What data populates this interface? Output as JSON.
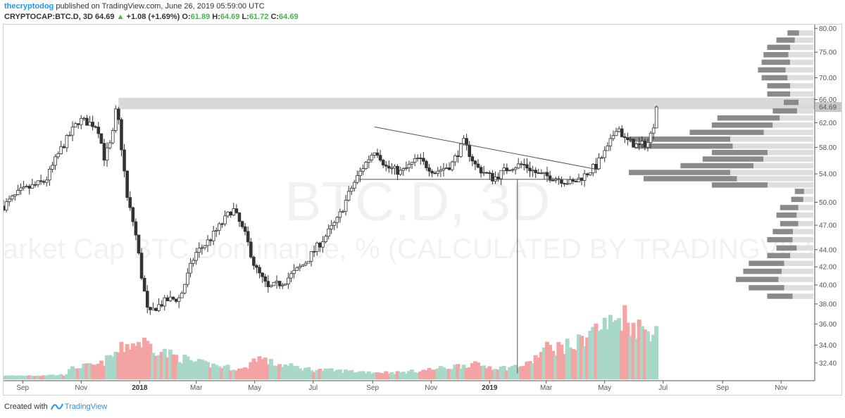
{
  "header": {
    "author": "thecryptodog",
    "published": "published on TradingView.com, June 26, 2019 05:59:00 UTC",
    "symbol": "CRYPTOCAP:BTC.D, 3D",
    "price": "64.69",
    "arrow": "▲",
    "change": "+1.08 (+1.69%)",
    "o_label": "O:",
    "o_value": "61.89",
    "h_label": "H:",
    "h_value": "64.69",
    "l_label": "L:",
    "l_value": "61.72",
    "c_label": "C:",
    "c_value": "64.69"
  },
  "watermark": {
    "big": "BTC.D, 3D",
    "desc": "Market Cap BTC Dominance, % (CALCULATED BY TRADINGVIEW)"
  },
  "footer": {
    "created_with": "Created with",
    "brand": "TradingView"
  },
  "colors": {
    "up": "#26a69a",
    "down": "#ef5350",
    "vol_up": "#a8d8c8",
    "vol_down": "#f4a3a3",
    "trend": "#555555",
    "zone": "#d6d6d6",
    "profile_dark": "#8a8a8a",
    "profile_light": "#dedede",
    "price_tag": "#c8c8c8"
  },
  "chart_data": {
    "type": "candlestick",
    "title": "Market Cap BTC Dominance, % (CALCULATED BY TRADINGVIEW)",
    "symbol": "CRYPTOCAP:BTC.D",
    "interval": "3D",
    "last_price": 64.69,
    "ylim": [
      31,
      80.5
    ],
    "y_ticks": [
      "80.00",
      "75.00",
      "70.00",
      "66.00",
      "62.00",
      "58.00",
      "54.00",
      "50.00",
      "47.00",
      "44.00",
      "42.00",
      "40.00",
      "38.00",
      "36.00",
      "34.00",
      "32.40"
    ],
    "last_price_label": "64.69",
    "y_scale": "log",
    "x_ticks": [
      {
        "label": "Sep",
        "date": "2017-09-01",
        "bold": false
      },
      {
        "label": "Nov",
        "date": "2017-11-01",
        "bold": false
      },
      {
        "label": "2018",
        "date": "2018-01-01",
        "bold": true
      },
      {
        "label": "Mar",
        "date": "2018-03-01",
        "bold": false
      },
      {
        "label": "May",
        "date": "2018-05-01",
        "bold": false
      },
      {
        "label": "Jul",
        "date": "2018-07-01",
        "bold": false
      },
      {
        "label": "Sep",
        "date": "2018-09-01",
        "bold": false
      },
      {
        "label": "Nov",
        "date": "2018-11-01",
        "bold": false
      },
      {
        "label": "2019",
        "date": "2019-01-01",
        "bold": true
      },
      {
        "label": "Mar",
        "date": "2019-03-01",
        "bold": false
      },
      {
        "label": "May",
        "date": "2019-05-01",
        "bold": false
      },
      {
        "label": "Jul",
        "date": "2019-07-01",
        "bold": false
      },
      {
        "label": "Sep",
        "date": "2019-09-01",
        "bold": false
      },
      {
        "label": "Nov",
        "date": "2019-11-01",
        "bold": false
      }
    ],
    "x_range": [
      "2017-08-12",
      "2020-01-03"
    ],
    "path_anchors": [
      {
        "date": "2017-08-12",
        "y": 49.5
      },
      {
        "date": "2017-08-30",
        "y": 51.5
      },
      {
        "date": "2017-09-25",
        "y": 53.0
      },
      {
        "date": "2017-10-10",
        "y": 57.5
      },
      {
        "date": "2017-10-30",
        "y": 62.5
      },
      {
        "date": "2017-11-18",
        "y": 61.5
      },
      {
        "date": "2017-11-25",
        "y": 56.5
      },
      {
        "date": "2017-12-03",
        "y": 59.0
      },
      {
        "date": "2017-12-08",
        "y": 65.0
      },
      {
        "date": "2017-12-13",
        "y": 58.0
      },
      {
        "date": "2017-12-19",
        "y": 50.5
      },
      {
        "date": "2017-12-27",
        "y": 46.5
      },
      {
        "date": "2018-01-03",
        "y": 41.0
      },
      {
        "date": "2018-01-10",
        "y": 36.8
      },
      {
        "date": "2018-01-17",
        "y": 37.6
      },
      {
        "date": "2018-01-30",
        "y": 38.4
      },
      {
        "date": "2018-02-12",
        "y": 38.6
      },
      {
        "date": "2018-02-28",
        "y": 43.5
      },
      {
        "date": "2018-03-15",
        "y": 45.2
      },
      {
        "date": "2018-03-30",
        "y": 47.6
      },
      {
        "date": "2018-04-08",
        "y": 49.2
      },
      {
        "date": "2018-04-22",
        "y": 45.5
      },
      {
        "date": "2018-05-01",
        "y": 42.0
      },
      {
        "date": "2018-05-15",
        "y": 39.6
      },
      {
        "date": "2018-06-01",
        "y": 40.4
      },
      {
        "date": "2018-06-22",
        "y": 42.4
      },
      {
        "date": "2018-07-13",
        "y": 45.5
      },
      {
        "date": "2018-07-27",
        "y": 47.8
      },
      {
        "date": "2018-08-10",
        "y": 52.0
      },
      {
        "date": "2018-08-22",
        "y": 55.0
      },
      {
        "date": "2018-09-04",
        "y": 57.8
      },
      {
        "date": "2018-09-15",
        "y": 55.0
      },
      {
        "date": "2018-10-01",
        "y": 54.2
      },
      {
        "date": "2018-10-18",
        "y": 56.2
      },
      {
        "date": "2018-11-05",
        "y": 54.3
      },
      {
        "date": "2018-11-22",
        "y": 55.3
      },
      {
        "date": "2018-12-05",
        "y": 58.8
      },
      {
        "date": "2018-12-18",
        "y": 55.0
      },
      {
        "date": "2019-01-05",
        "y": 53.3
      },
      {
        "date": "2019-01-22",
        "y": 55.0
      },
      {
        "date": "2019-02-05",
        "y": 55.4
      },
      {
        "date": "2019-02-22",
        "y": 53.8
      },
      {
        "date": "2019-03-10",
        "y": 53.5
      },
      {
        "date": "2019-03-28",
        "y": 52.6
      },
      {
        "date": "2019-04-10",
        "y": 53.8
      },
      {
        "date": "2019-04-22",
        "y": 55.2
      },
      {
        "date": "2019-05-05",
        "y": 58.0
      },
      {
        "date": "2019-05-14",
        "y": 61.6
      },
      {
        "date": "2019-05-22",
        "y": 59.2
      },
      {
        "date": "2019-06-05",
        "y": 58.2
      },
      {
        "date": "2019-06-16",
        "y": 58.8
      },
      {
        "date": "2019-06-26",
        "y": 64.69
      }
    ],
    "volume_anchors": [
      {
        "date": "2017-08-12",
        "v": 0.06
      },
      {
        "date": "2017-10-15",
        "v": 0.08
      },
      {
        "date": "2017-10-25",
        "v": 0.22
      },
      {
        "date": "2017-11-20",
        "v": 0.25
      },
      {
        "date": "2017-12-20",
        "v": 0.62
      },
      {
        "date": "2018-01-05",
        "v": 0.66
      },
      {
        "date": "2018-01-30",
        "v": 0.45
      },
      {
        "date": "2018-03-01",
        "v": 0.3
      },
      {
        "date": "2018-04-20",
        "v": 0.17
      },
      {
        "date": "2018-05-03",
        "v": 0.4
      },
      {
        "date": "2018-05-20",
        "v": 0.28
      },
      {
        "date": "2018-07-01",
        "v": 0.17
      },
      {
        "date": "2018-09-01",
        "v": 0.13
      },
      {
        "date": "2018-10-01",
        "v": 0.12
      },
      {
        "date": "2018-11-15",
        "v": 0.2
      },
      {
        "date": "2018-12-10",
        "v": 0.27
      },
      {
        "date": "2019-01-15",
        "v": 0.2
      },
      {
        "date": "2019-02-10",
        "v": 0.26
      },
      {
        "date": "2019-03-01",
        "v": 0.55
      },
      {
        "date": "2019-04-01",
        "v": 0.6
      },
      {
        "date": "2019-04-15",
        "v": 0.85
      },
      {
        "date": "2019-05-10",
        "v": 1.0
      },
      {
        "date": "2019-05-20",
        "v": 1.15
      },
      {
        "date": "2019-06-01",
        "v": 0.95
      },
      {
        "date": "2019-06-15",
        "v": 0.85
      },
      {
        "date": "2019-06-26",
        "v": 1.0
      }
    ],
    "resistance_zone": [
      64.3,
      66.3
    ],
    "lines": [
      {
        "name": "descending-trendline",
        "from": {
          "date": "2018-09-03",
          "y": 61.3
        },
        "to": {
          "date": "2019-04-25",
          "y": 54.6
        }
      },
      {
        "name": "support-line",
        "from": {
          "date": "2018-08-18",
          "y": 53.2
        },
        "to": {
          "date": "2019-04-05",
          "y": 53.2
        }
      },
      {
        "name": "vertical-marker",
        "from": {
          "date": "2019-01-30",
          "y": 53.2
        },
        "to": {
          "date": "2019-01-30",
          "y": 31.5
        }
      }
    ],
    "volume_profile": [
      {
        "y": 79.0,
        "w": 0.14,
        "up": 0.55
      },
      {
        "y": 77.5,
        "w": 0.2,
        "up": 0.5
      },
      {
        "y": 76.0,
        "w": 0.25,
        "up": 0.5
      },
      {
        "y": 74.5,
        "w": 0.27,
        "up": 0.5
      },
      {
        "y": 73.0,
        "w": 0.28,
        "up": 0.45
      },
      {
        "y": 71.5,
        "w": 0.3,
        "up": 0.5
      },
      {
        "y": 70.0,
        "w": 0.28,
        "up": 0.5
      },
      {
        "y": 68.5,
        "w": 0.25,
        "up": 0.5
      },
      {
        "y": 67.0,
        "w": 0.25,
        "up": 0.5
      },
      {
        "y": 65.5,
        "w": 0.16,
        "up": 0.5
      },
      {
        "y": 64.0,
        "w": 0.22,
        "up": 0.4
      },
      {
        "y": 62.8,
        "w": 0.52,
        "up": 0.35
      },
      {
        "y": 61.6,
        "w": 0.55,
        "up": 0.4
      },
      {
        "y": 60.4,
        "w": 0.67,
        "up": 0.4
      },
      {
        "y": 59.3,
        "w": 1.0,
        "up": 0.45
      },
      {
        "y": 58.2,
        "w": 0.97,
        "up": 0.45
      },
      {
        "y": 57.2,
        "w": 0.55,
        "up": 0.45
      },
      {
        "y": 56.2,
        "w": 0.6,
        "up": 0.45
      },
      {
        "y": 55.2,
        "w": 0.72,
        "up": 0.45
      },
      {
        "y": 54.2,
        "w": 1.0,
        "up": 0.45
      },
      {
        "y": 53.3,
        "w": 0.92,
        "up": 0.45
      },
      {
        "y": 52.4,
        "w": 0.55,
        "up": 0.45
      },
      {
        "y": 51.5,
        "w": 0.1,
        "up": 0.5
      },
      {
        "y": 50.4,
        "w": 0.12,
        "up": 0.45
      },
      {
        "y": 49.3,
        "w": 0.18,
        "up": 0.45
      },
      {
        "y": 48.3,
        "w": 0.2,
        "up": 0.45
      },
      {
        "y": 47.2,
        "w": 0.18,
        "up": 0.45
      },
      {
        "y": 46.2,
        "w": 0.22,
        "up": 0.5
      },
      {
        "y": 45.2,
        "w": 0.25,
        "up": 0.45
      },
      {
        "y": 44.2,
        "w": 0.2,
        "up": 0.45
      },
      {
        "y": 43.3,
        "w": 0.25,
        "up": 0.5
      },
      {
        "y": 42.4,
        "w": 0.35,
        "up": 0.45
      },
      {
        "y": 41.5,
        "w": 0.38,
        "up": 0.45
      },
      {
        "y": 40.6,
        "w": 0.42,
        "up": 0.45
      },
      {
        "y": 39.7,
        "w": 0.35,
        "up": 0.45
      },
      {
        "y": 38.8,
        "w": 0.25,
        "up": 0.45
      }
    ]
  }
}
